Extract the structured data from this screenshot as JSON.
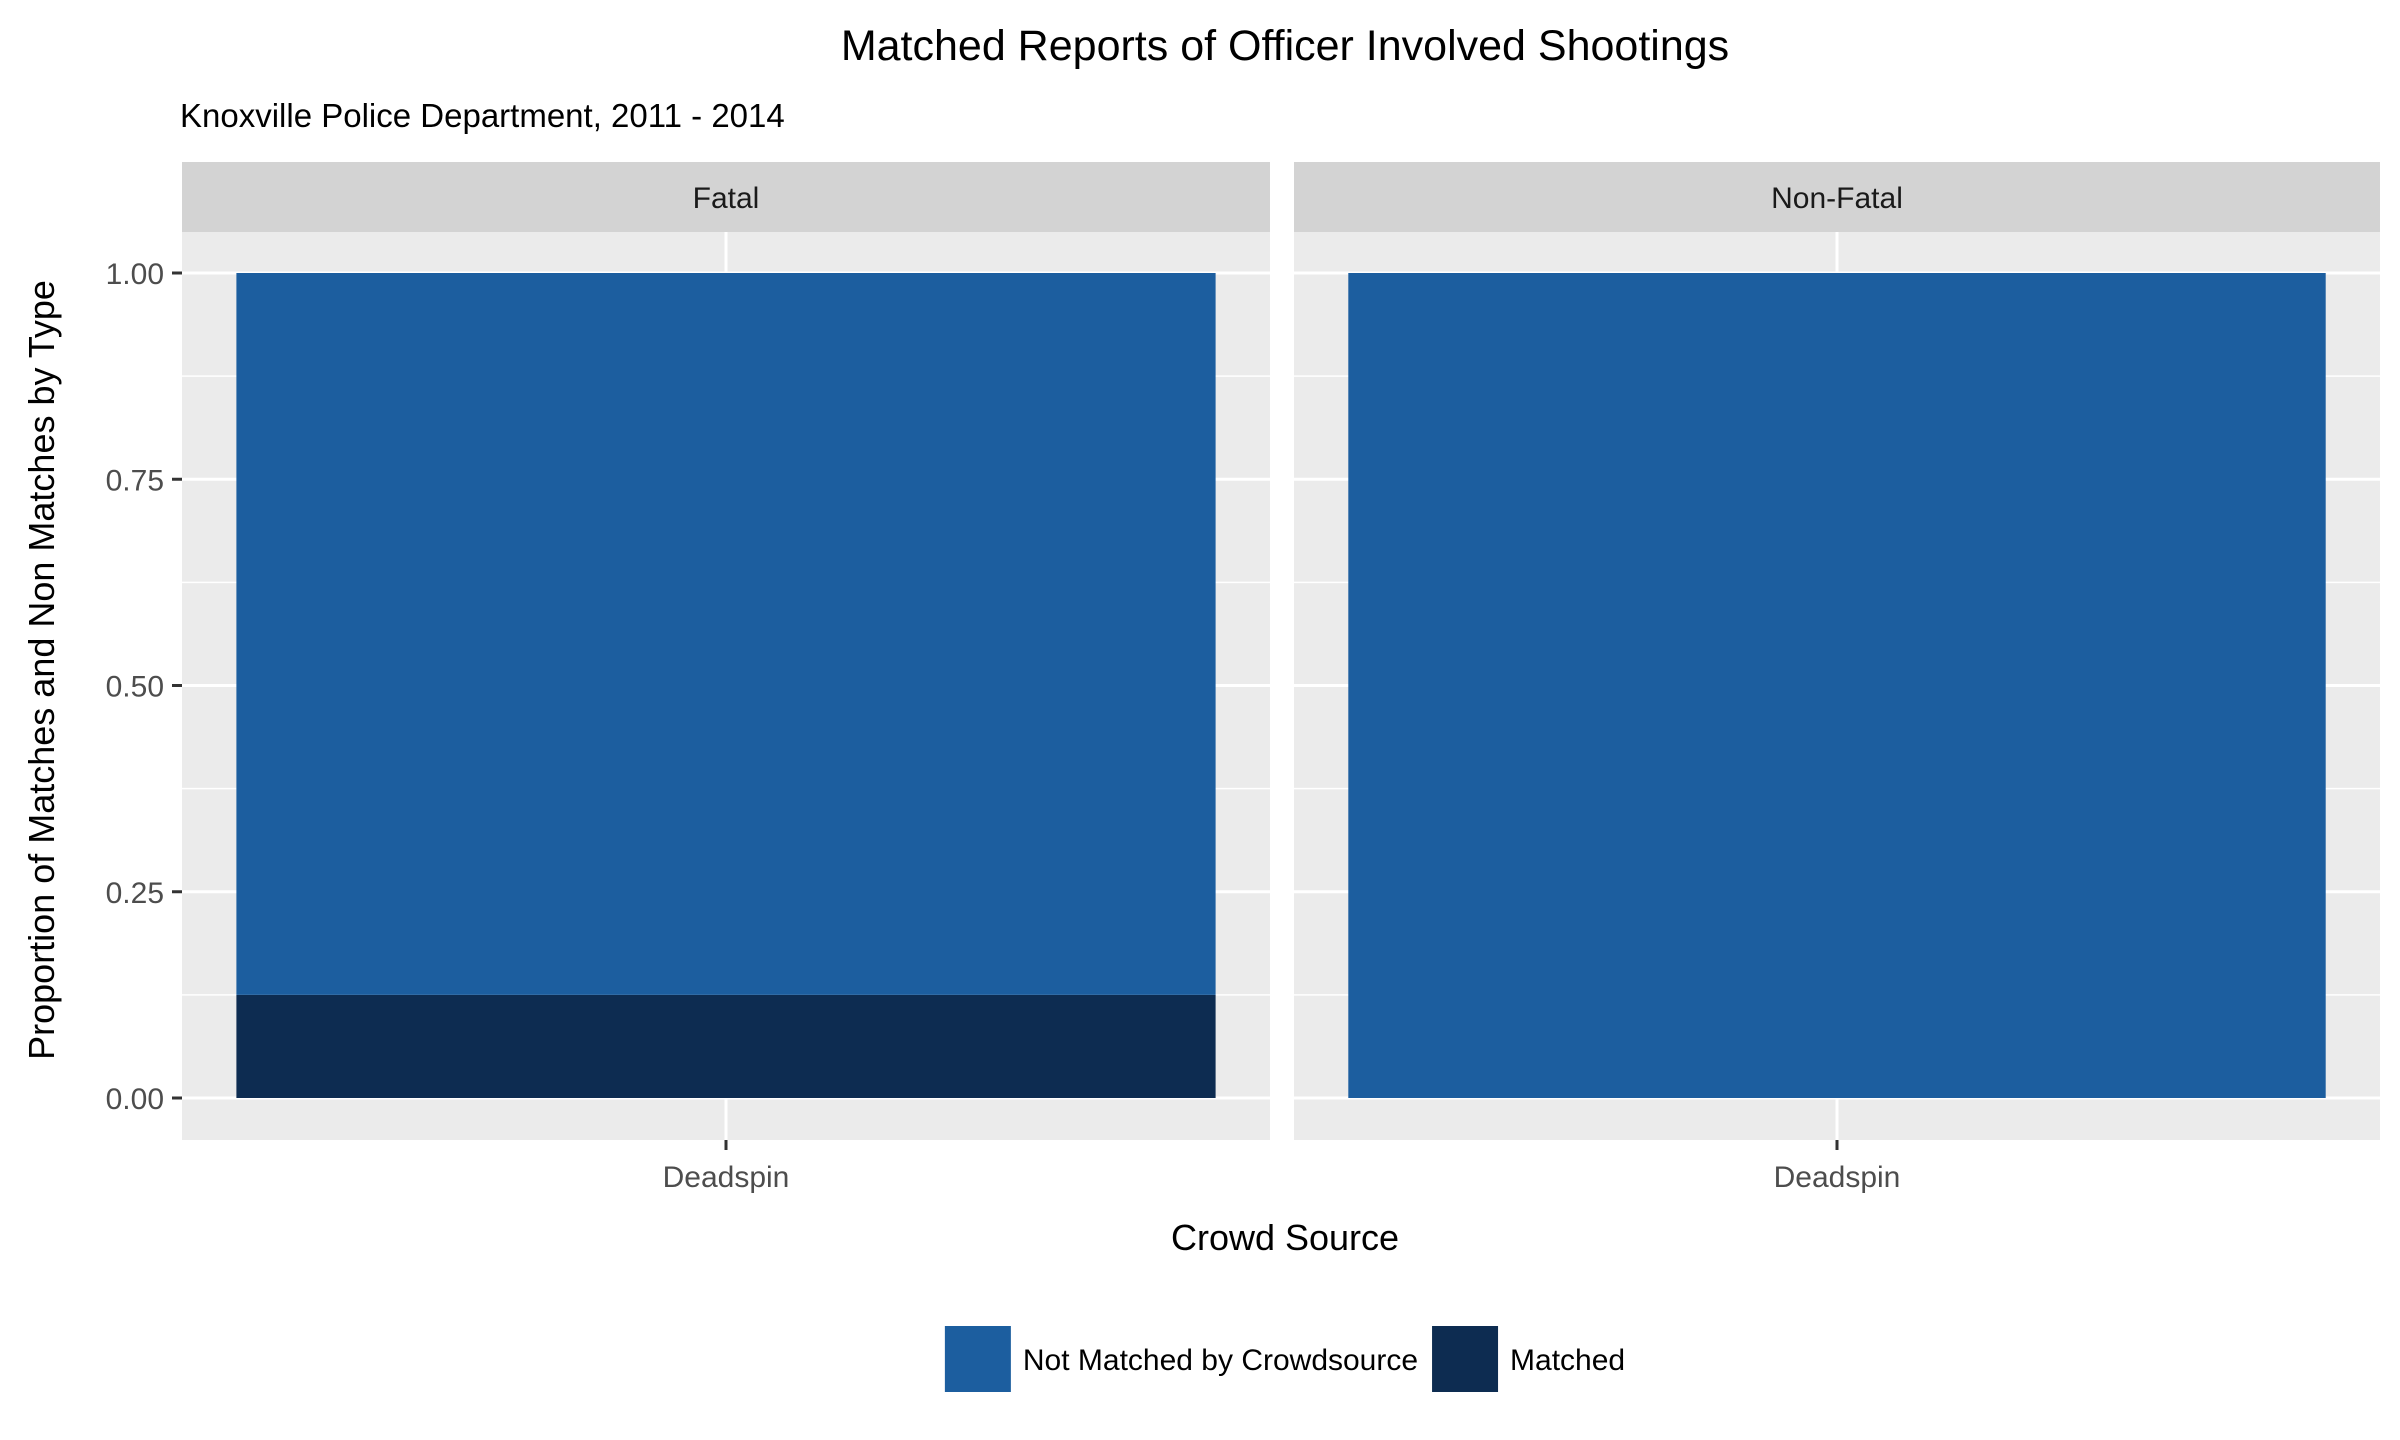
{
  "chart_data": {
    "type": "bar",
    "stacked": true,
    "title": "Matched Reports of Officer Involved Shootings",
    "subtitle": "Knoxville Police Department, 2011 - 2014",
    "xlabel": "Crowd Source",
    "ylabel": "Proportion of Matches and Non Matches by Type",
    "ylim": [
      0,
      1.05
    ],
    "yticks": [
      0,
      0.25,
      0.5,
      0.75,
      1
    ],
    "ytick_labels": [
      "0.00",
      "0.25",
      "0.50",
      "0.75",
      "1.00"
    ],
    "grid": true,
    "legend_position": "bottom",
    "facets": [
      {
        "label": "Fatal",
        "categories": [
          "Deadspin"
        ],
        "series": [
          {
            "name": "Matched",
            "values": [
              0.125
            ]
          },
          {
            "name": "Not Matched by Crowdsource",
            "values": [
              0.875
            ]
          }
        ]
      },
      {
        "label": "Non-Fatal",
        "categories": [
          "Deadspin"
        ],
        "series": [
          {
            "name": "Matched",
            "values": [
              0
            ]
          },
          {
            "name": "Not Matched by Crowdsource",
            "values": [
              1
            ]
          }
        ]
      }
    ],
    "legend": [
      {
        "name": "Not Matched by Crowdsource",
        "color": "#1c5e9f"
      },
      {
        "name": "Matched",
        "color": "#0d2c51"
      }
    ],
    "colors": {
      "Not Matched by Crowdsource": "#1c5e9f",
      "Matched": "#0d2c51"
    }
  }
}
